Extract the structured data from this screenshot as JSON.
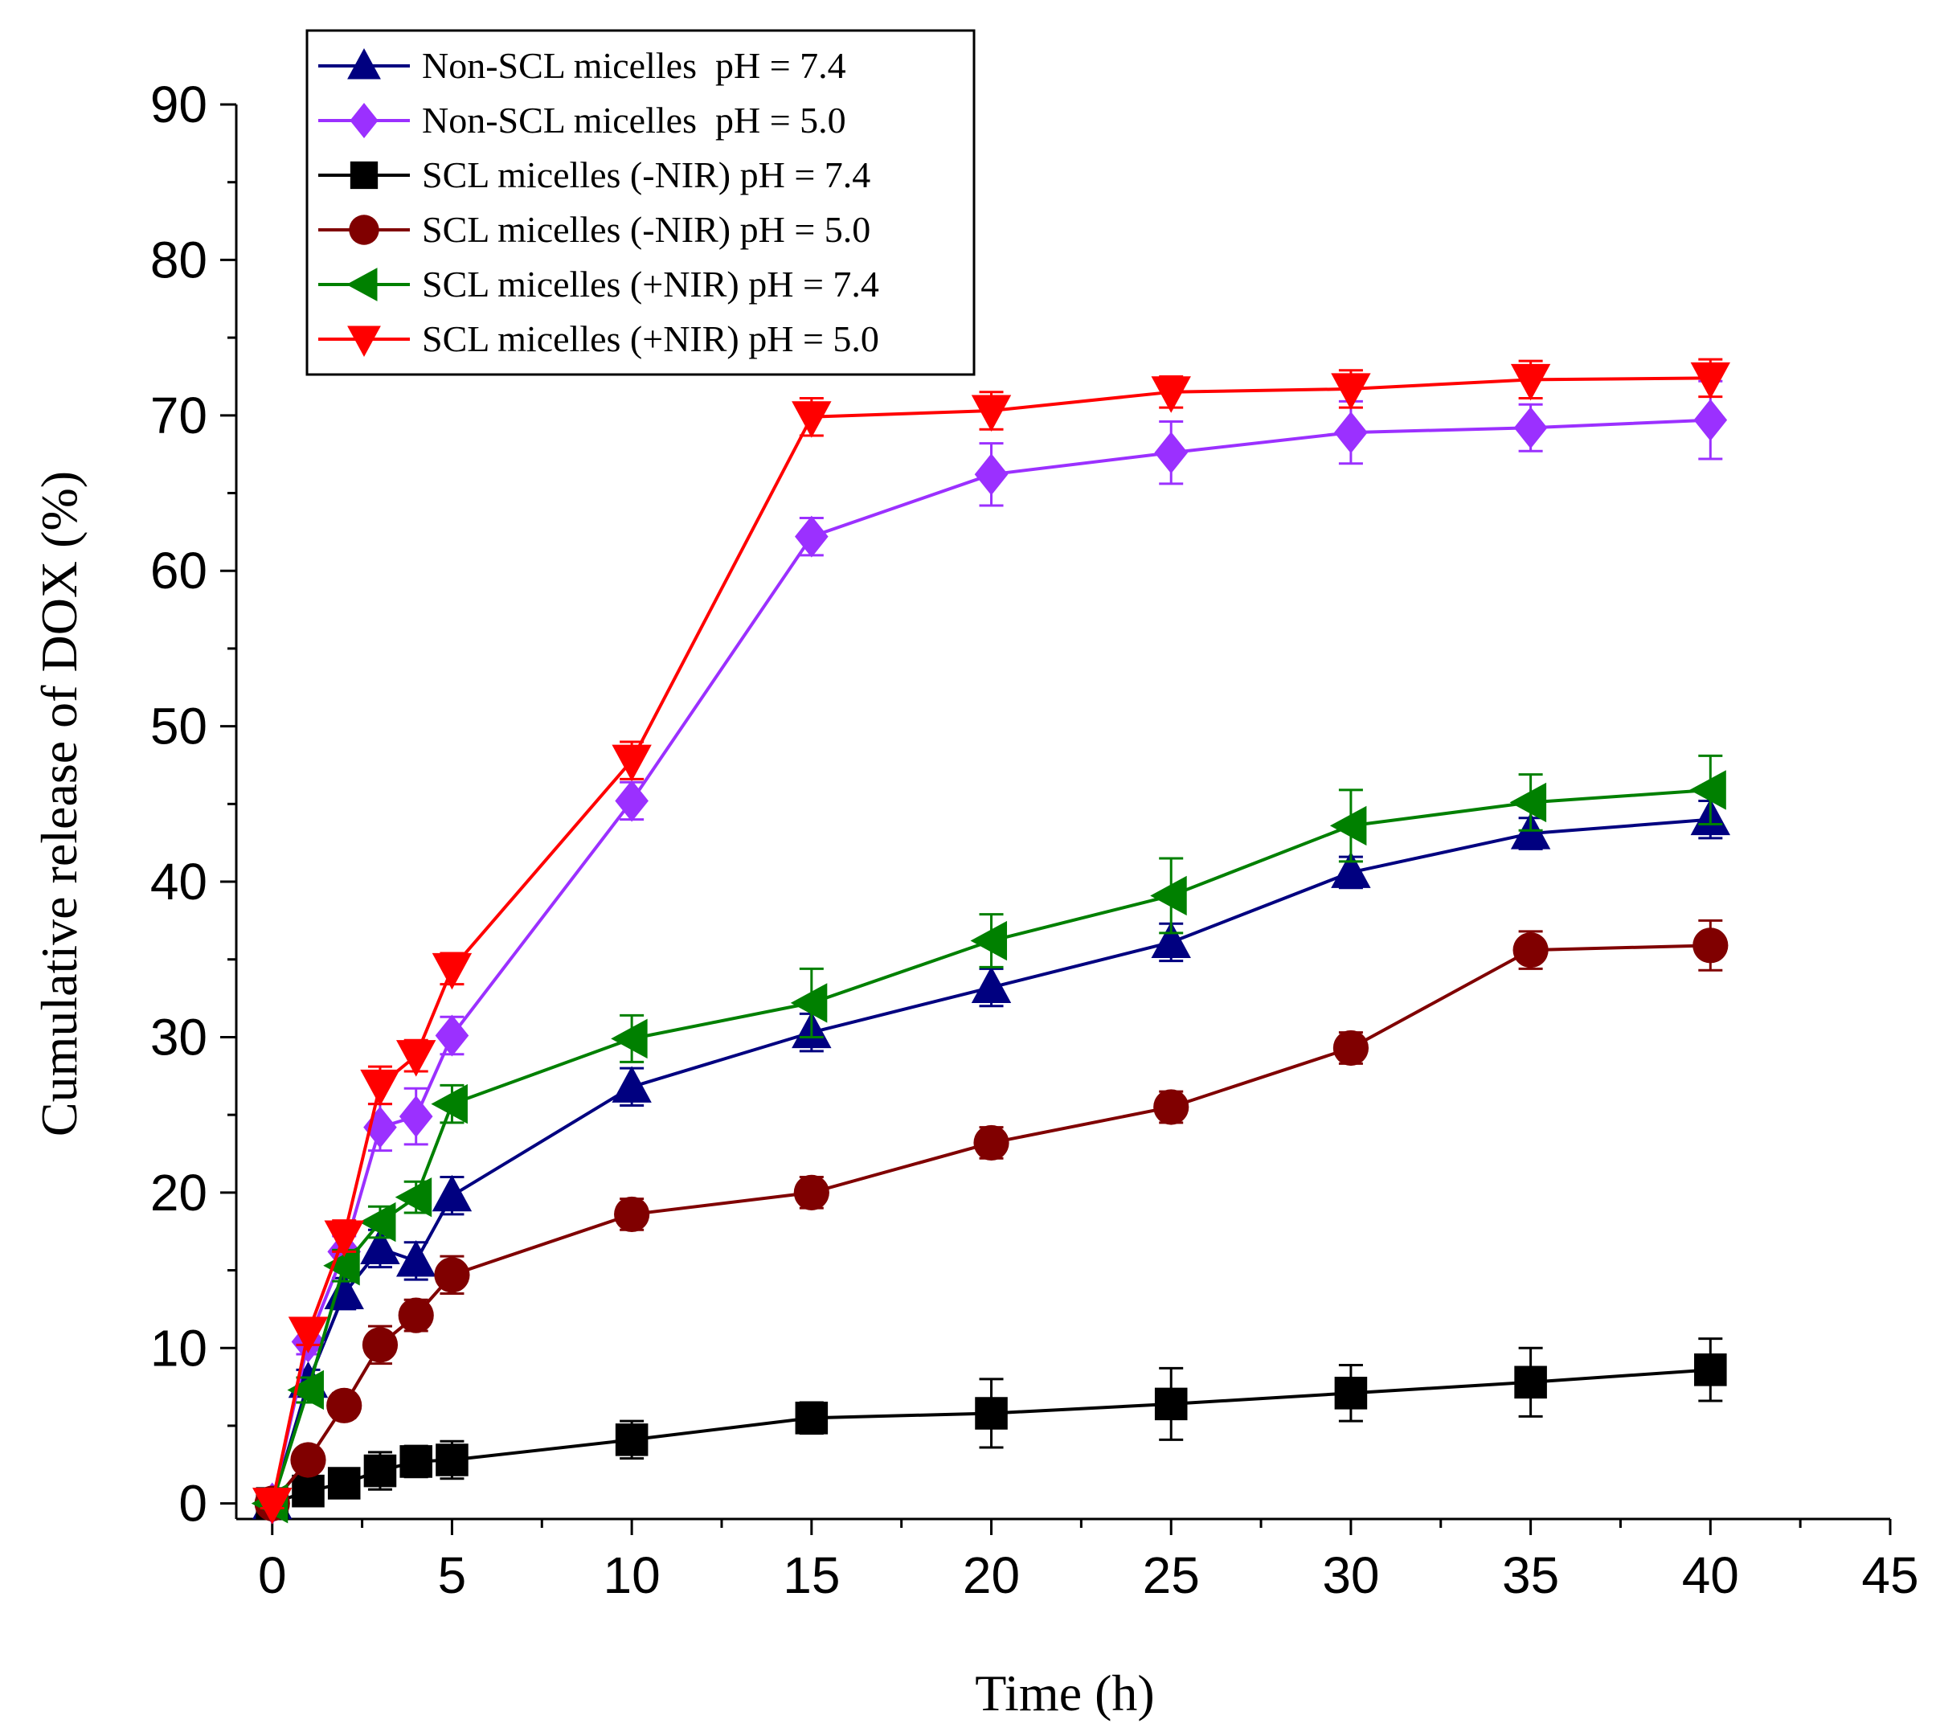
{
  "chart_data": {
    "type": "line",
    "title": "",
    "xlabel": "Time (h)",
    "ylabel": "Cumulative release of DOX (%)",
    "xlim": [
      -1,
      45
    ],
    "ylim": [
      -1,
      90
    ],
    "xticks": [
      0,
      5,
      10,
      15,
      20,
      25,
      30,
      35,
      40,
      45
    ],
    "yticks": [
      0,
      10,
      20,
      30,
      40,
      50,
      60,
      70,
      80,
      90
    ],
    "grid": false,
    "legend_position": "top-left",
    "x": [
      0,
      1,
      2,
      3,
      4,
      5,
      10,
      15,
      20,
      25,
      30,
      35,
      40
    ],
    "series": [
      {
        "name": "Non-SCL micelles  pH = 7.4",
        "color": "#000080",
        "marker": "triangle-up",
        "values": [
          0,
          7.8,
          13.5,
          16.4,
          15.6,
          19.8,
          26.8,
          30.3,
          33.2,
          36.1,
          40.6,
          43.1,
          44.0
        ],
        "errors": [
          0.3,
          0.8,
          1.0,
          1.2,
          1.2,
          1.2,
          1.2,
          1.2,
          1.2,
          1.2,
          1.0,
          1.0,
          1.2
        ]
      },
      {
        "name": "Non-SCL micelles  pH = 5.0",
        "color": "#9b30ff",
        "marker": "diamond",
        "values": [
          0,
          10.4,
          16.2,
          24.2,
          24.9,
          30.1,
          45.2,
          62.2,
          66.2,
          67.6,
          68.9,
          69.2,
          69.7
        ],
        "errors": [
          0.3,
          0.8,
          1.0,
          1.5,
          1.8,
          1.2,
          1.2,
          1.2,
          2.0,
          2.0,
          2.0,
          1.5,
          2.5
        ]
      },
      {
        "name": "SCL micelles (-NIR) pH = 7.4",
        "color": "#000000",
        "marker": "square",
        "values": [
          0,
          0.8,
          1.3,
          2.1,
          2.7,
          2.8,
          4.1,
          5.5,
          5.8,
          6.4,
          7.1,
          7.8,
          8.6
        ],
        "errors": [
          0.2,
          0.6,
          0.8,
          1.2,
          1.0,
          1.2,
          1.2,
          1.0,
          2.2,
          2.3,
          1.8,
          2.2,
          2.0
        ]
      },
      {
        "name": "SCL micelles (-NIR) pH = 5.0",
        "color": "#800000",
        "marker": "circle",
        "values": [
          0,
          2.8,
          6.3,
          10.2,
          12.1,
          14.7,
          18.6,
          20.0,
          23.2,
          25.5,
          29.3,
          35.6,
          35.9
        ],
        "errors": [
          0.2,
          0.5,
          0.8,
          1.2,
          1.0,
          1.2,
          1.0,
          1.0,
          1.0,
          1.0,
          1.0,
          1.2,
          1.6
        ]
      },
      {
        "name": "SCL micelles (+NIR) pH = 7.4",
        "color": "#008000",
        "marker": "triangle-left",
        "values": [
          0,
          7.3,
          15.3,
          18.1,
          19.7,
          25.7,
          29.9,
          32.2,
          36.2,
          39.1,
          43.6,
          45.1,
          45.9
        ],
        "errors": [
          0.3,
          0.8,
          1.0,
          1.0,
          1.0,
          1.2,
          1.5,
          2.2,
          1.7,
          2.4,
          2.3,
          1.8,
          2.2
        ]
      },
      {
        "name": "SCL micelles (+NIR) pH = 5.0",
        "color": "#ff0000",
        "marker": "triangle-down",
        "values": [
          0,
          11.0,
          17.2,
          26.9,
          28.8,
          34.4,
          47.8,
          69.9,
          70.3,
          71.5,
          71.7,
          72.3,
          72.4
        ],
        "errors": [
          0.3,
          0.8,
          1.0,
          1.2,
          1.0,
          1.0,
          1.2,
          1.2,
          1.2,
          1.0,
          1.2,
          1.2,
          1.2
        ]
      }
    ]
  }
}
